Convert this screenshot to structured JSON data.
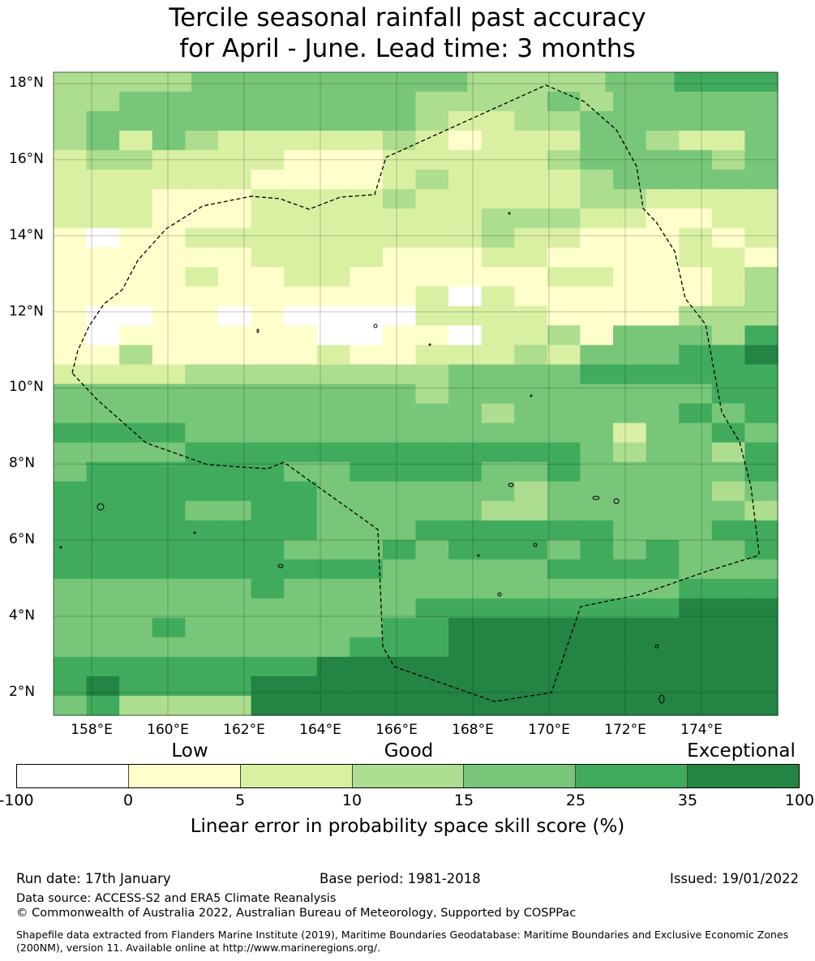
{
  "title_line1": "Tercile seasonal rainfall past accuracy",
  "title_line2": "for April - June. Lead time: 3 months",
  "map": {
    "lat_labels": [
      "18°N",
      "16°N",
      "14°N",
      "12°N",
      "10°N",
      "8°N",
      "6°N",
      "4°N",
      "2°N"
    ],
    "lon_labels": [
      "158°E",
      "160°E",
      "162°E",
      "164°E",
      "166°E",
      "168°E",
      "170°E",
      "172°E",
      "174°E"
    ],
    "extent": {
      "lon_min": 157.0,
      "lon_max": 176.0,
      "lat_min": 1.4,
      "lat_max": 18.3
    },
    "cell_size_deg": 0.833,
    "boundary_style": "dashed-black",
    "grid": "on"
  },
  "legend": {
    "headings": [
      "Low",
      "Good",
      "Exceptional"
    ],
    "ticks": [
      "-100",
      "0",
      "5",
      "10",
      "15",
      "25",
      "35",
      "100"
    ],
    "bins": [
      {
        "range": "-100 to 0",
        "color": "#ffffff"
      },
      {
        "range": "0 to 5",
        "color": "#ffffcc"
      },
      {
        "range": "5 to 10",
        "color": "#d9f0a3"
      },
      {
        "range": "10 to 15",
        "color": "#addd8e"
      },
      {
        "range": "15 to 25",
        "color": "#78c679"
      },
      {
        "range": "25 to 35",
        "color": "#41ab5d"
      },
      {
        "range": "35 to 100",
        "color": "#238443"
      }
    ],
    "label": "Linear error in probability space skill score (%)"
  },
  "footer": {
    "run_date": "Run date: 17th January",
    "base_period": "Base period: 1981-2018",
    "issued": "Issued: 19/01/2022",
    "data_source": "Data source: ACCESS-S2 and ERA5 Climate Reanalysis",
    "copyright": "© Commonwealth of Australia 2022, Australian Bureau of Meteorology, Supported by COSPPac",
    "shapefile": "Shapefile data extracted from Flanders Marine Institute (2019), Maritime Boundaries Geodatabase: Maritime Boundaries and Exclusive Economic Zones (200NM), version 11. Available online at http://www.marineregions.org/."
  }
}
